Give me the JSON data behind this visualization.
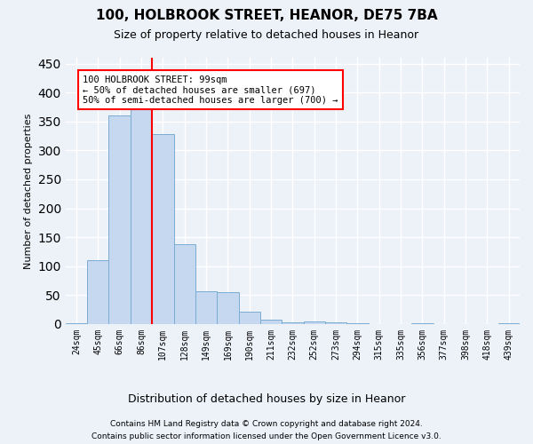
{
  "title1": "100, HOLBROOK STREET, HEANOR, DE75 7BA",
  "title2": "Size of property relative to detached houses in Heanor",
  "xlabel": "Distribution of detached houses by size in Heanor",
  "ylabel": "Number of detached properties",
  "categories": [
    "24sqm",
    "45sqm",
    "66sqm",
    "86sqm",
    "107sqm",
    "128sqm",
    "149sqm",
    "169sqm",
    "190sqm",
    "211sqm",
    "232sqm",
    "252sqm",
    "273sqm",
    "294sqm",
    "315sqm",
    "335sqm",
    "356sqm",
    "377sqm",
    "398sqm",
    "418sqm",
    "439sqm"
  ],
  "values": [
    2,
    110,
    360,
    385,
    328,
    138,
    57,
    55,
    22,
    7,
    3,
    5,
    3,
    2,
    0,
    0,
    1,
    0,
    0,
    0,
    1
  ],
  "bar_color": "#c5d8f0",
  "bar_edge_color": "#7aadd4",
  "annotation_text": "100 HOLBROOK STREET: 99sqm\n← 50% of detached houses are smaller (697)\n50% of semi-detached houses are larger (700) →",
  "annotation_box_color": "white",
  "annotation_box_edge_color": "red",
  "footer1": "Contains HM Land Registry data © Crown copyright and database right 2024.",
  "footer2": "Contains public sector information licensed under the Open Government Licence v3.0.",
  "ylim": [
    0,
    460
  ],
  "red_line_x": 3.5,
  "background_color": "#edf2f9",
  "grid_color": "white",
  "title1_fontsize": 11,
  "title2_fontsize": 9,
  "ylabel_fontsize": 8,
  "xlabel_fontsize": 9,
  "tick_fontsize": 7,
  "annotation_fontsize": 7.5,
  "footer_fontsize": 6.5
}
